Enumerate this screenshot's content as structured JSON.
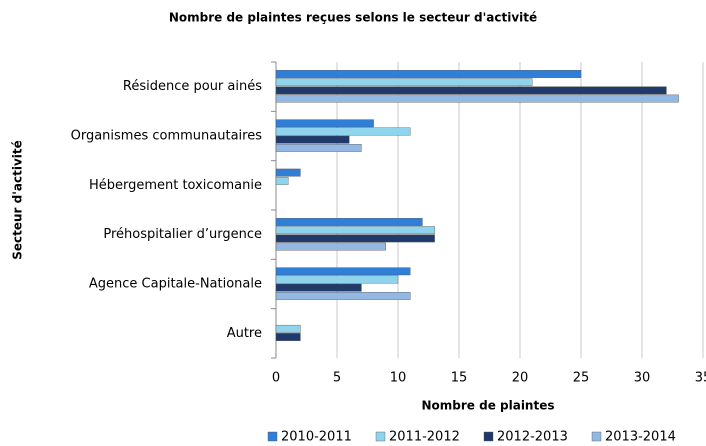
{
  "chart_data": {
    "type": "hbar",
    "title": "Nombre de plaintes reçues selons le secteur d'activité",
    "xlabel": "Nombre de plaintes",
    "ylabel": "Secteur d'activité",
    "categories": [
      "Résidence pour ainés",
      "Organismes communautaires",
      "Hébergement toxicomanie",
      "Préhospitalier d’urgence",
      "Agence Capitale-Nationale",
      "Autre"
    ],
    "series": [
      {
        "name": "2010-2011",
        "color": "#2f7fd8",
        "values": [
          25,
          8,
          2,
          12,
          11,
          0
        ]
      },
      {
        "name": "2011-2012",
        "color": "#8fd3ec",
        "values": [
          21,
          11,
          1,
          13,
          10,
          2
        ]
      },
      {
        "name": "2012-2013",
        "color": "#1f3a6b",
        "values": [
          32,
          6,
          0,
          13,
          7,
          2
        ]
      },
      {
        "name": "2013-2014",
        "color": "#93b8e3",
        "values": [
          33,
          7,
          0,
          9,
          11,
          0
        ]
      }
    ],
    "xlim": [
      0,
      35
    ],
    "xticks": [
      0,
      5,
      10,
      15,
      20,
      25,
      30,
      35
    ],
    "grid": true
  }
}
